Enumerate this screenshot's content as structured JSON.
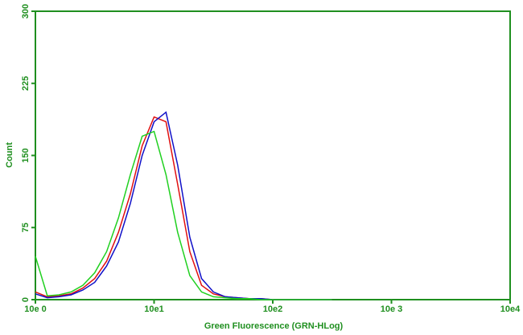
{
  "chart_data": {
    "type": "line",
    "x_label": "Green Fluorescence (GRN-HLog)",
    "y_label": "Count",
    "x_scale": "log",
    "axis_color": "#1f8f1f",
    "x": [
      1,
      1.26,
      1.58,
      2,
      2.51,
      3.16,
      3.98,
      5.01,
      6.31,
      7.94,
      10,
      12.6,
      15.8,
      20,
      25.1,
      31.6,
      39.8,
      50.1,
      63.1,
      79.4,
      100,
      126,
      158,
      200,
      251,
      316
    ],
    "series": [
      {
        "color": "#e01010",
        "values": [
          8,
          3,
          4,
          6,
          12,
          22,
          40,
          70,
          110,
          160,
          190,
          185,
          120,
          50,
          15,
          6,
          3,
          2,
          1,
          1,
          0,
          0,
          0,
          0,
          0,
          0
        ]
      },
      {
        "color": "#1010c8",
        "values": [
          6,
          2,
          3,
          5,
          10,
          18,
          35,
          60,
          100,
          150,
          185,
          195,
          140,
          65,
          22,
          8,
          3,
          2,
          1,
          1,
          0,
          0,
          0,
          0,
          0,
          0
        ]
      },
      {
        "color": "#20d020",
        "values": [
          45,
          4,
          5,
          8,
          15,
          28,
          50,
          85,
          130,
          170,
          175,
          130,
          70,
          25,
          8,
          3,
          2,
          1,
          1,
          0,
          0,
          0,
          0,
          0,
          0,
          0
        ]
      }
    ],
    "xlim": [
      1,
      10000
    ],
    "xticks": [
      {
        "value": 1,
        "label": "10e 0"
      },
      {
        "value": 10,
        "label": "10e1"
      },
      {
        "value": 100,
        "label": "10e2"
      },
      {
        "value": 1000,
        "label": "10e 3"
      },
      {
        "value": 10000,
        "label": "10e4"
      }
    ],
    "ylim": [
      0,
      300
    ],
    "yticks": [
      0,
      75,
      150,
      225,
      300
    ]
  }
}
